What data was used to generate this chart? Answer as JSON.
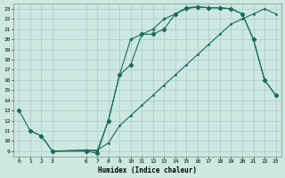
{
  "xlabel": "Humidex (Indice chaleur)",
  "bg_color": "#cce8e0",
  "grid_color": "#aacccc",
  "line_color": "#1a6b5a",
  "xlim": [
    -0.5,
    23.5
  ],
  "ylim": [
    8.5,
    23.5
  ],
  "xticks": [
    0,
    1,
    2,
    3,
    6,
    7,
    8,
    9,
    10,
    11,
    12,
    13,
    14,
    15,
    16,
    17,
    18,
    19,
    20,
    21,
    22,
    23
  ],
  "yticks": [
    9,
    10,
    11,
    12,
    13,
    14,
    15,
    16,
    17,
    18,
    19,
    20,
    21,
    22,
    23
  ],
  "curve1_x": [
    0,
    1,
    2,
    3,
    6,
    7,
    8,
    9,
    10,
    11,
    12,
    13,
    14,
    15,
    16,
    17,
    18,
    19,
    20,
    21,
    22,
    23
  ],
  "curve1_y": [
    13,
    11,
    10.5,
    9,
    9,
    8.8,
    12,
    16.5,
    17.5,
    20.5,
    20.5,
    21,
    22.5,
    23.1,
    23.2,
    23.1,
    23.1,
    23.0,
    22.5,
    20.0,
    16.0,
    14.5
  ],
  "curve2_x": [
    3,
    6,
    7,
    8,
    9,
    10,
    11,
    12,
    13,
    14,
    15,
    16,
    17,
    18,
    19,
    20,
    21,
    22,
    23
  ],
  "curve2_y": [
    9,
    9.1,
    9.1,
    9.8,
    11.5,
    12.5,
    13.5,
    14.5,
    15.5,
    16.5,
    17.5,
    18.5,
    19.5,
    20.5,
    21.5,
    22.0,
    22.5,
    23.0,
    22.5
  ],
  "curve3_x": [
    1,
    2,
    3,
    6,
    7,
    8,
    9,
    10,
    11,
    12,
    13,
    14,
    15,
    16,
    17,
    18,
    19,
    20,
    21,
    22,
    23
  ],
  "curve3_y": [
    11,
    10.5,
    9,
    9.1,
    9.0,
    12,
    16.5,
    20.0,
    20.5,
    21.0,
    22.0,
    22.5,
    23.0,
    23.2,
    23.1,
    23.1,
    23.0,
    22.5,
    20.0,
    16.0,
    14.5
  ]
}
